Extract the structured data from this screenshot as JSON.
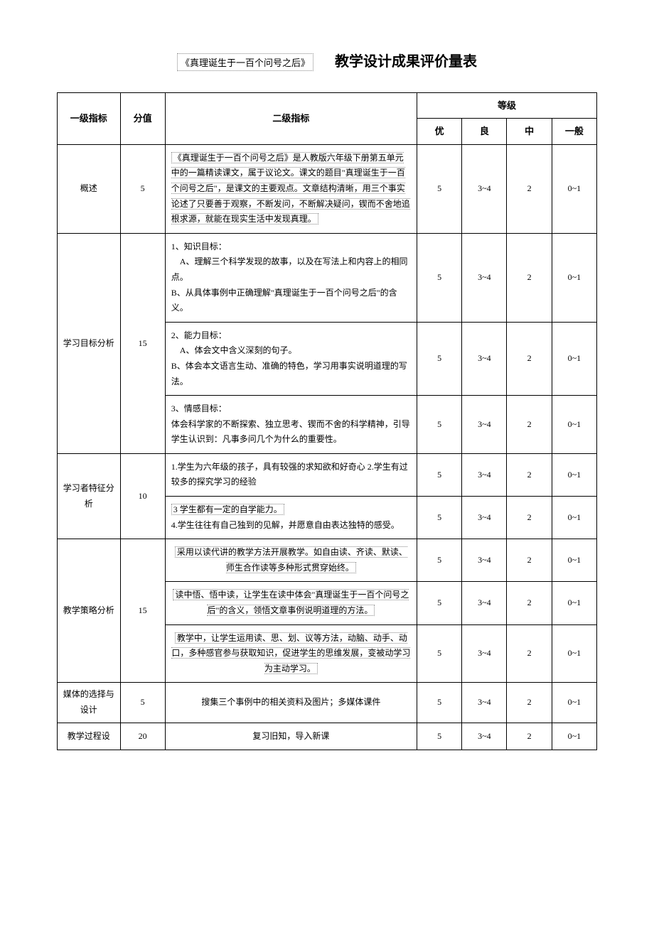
{
  "header": {
    "title_left": "《真理诞生于一百个问号之后》",
    "title_right": "教学设计成果评价量表"
  },
  "table_headers": {
    "level1": "一级指标",
    "score": "分值",
    "level2": "二级指标",
    "grade": "等级",
    "excellent": "优",
    "good": "良",
    "medium": "中",
    "normal": "一般"
  },
  "grades": {
    "excellent": "5",
    "good": "3~4",
    "medium": "2",
    "normal": "0~1"
  },
  "rows": [
    {
      "indicator": "概述",
      "score": "5",
      "items": [
        {
          "content": "《真理诞生于一百个问号之后》是人教版六年级下册第五单元中的一篇精读课文，属于议论文。课文的题目\"真理诞生于一百个问号之后\"，是课文的主要观点。文章结构清晰，用三个事实论述了只要善于观察，不断发问，不断解决疑问，锲而不舍地追根求源，就能在现实生活中发现真理。",
          "boxed": true
        }
      ]
    },
    {
      "indicator": "学习目标分析",
      "score": "15",
      "items": [
        {
          "content_lines": [
            "1、知识目标：",
            "　A、理解三个科学发现的故事，以及在写法上和内容上的相同点。",
            "B、从具体事例中正确理解\"真理诞生于一百个问号之后\"的含义。"
          ]
        },
        {
          "content_lines": [
            "2、能力目标：",
            "　A、体会文中含义深刻的句子。",
            "B、体会本文语言生动、准确的特色，学习用事实说明道理的写法。"
          ]
        },
        {
          "content_lines": [
            "3、情感目标：",
            "体会科学家的不断探索、独立思考、锲而不舍的科学精神，引导学生认识到：凡事多问几个为什么的重要性。"
          ]
        }
      ]
    },
    {
      "indicator": "学习者特征分析",
      "score": "10",
      "items": [
        {
          "content": "1.学生为六年级的孩子，具有较强的求知欲和好奇心 2.学生有过较多的探究学习的经验"
        },
        {
          "content_parts": [
            {
              "text": "3 学生都有一定的自学能力。",
              "boxed": true
            },
            {
              "text": "4.学生往往有自己独到的见解，并愿意自由表达独特的感受。",
              "boxed": false
            }
          ]
        }
      ]
    },
    {
      "indicator": "教学策略分析",
      "score": "15",
      "items": [
        {
          "content": "采用以读代讲的教学方法开展教学。如自由读、齐读、默读、师生合作读等多种形式贯穿始终。",
          "boxed": true,
          "center": true
        },
        {
          "content": "读中悟、悟中读，让学生在读中体会\"真理诞生于一百个问号之后\"的含义，领悟文章事例说明道理的方法。",
          "boxed": true,
          "center": true
        },
        {
          "content": "教学中，让学生运用读、思、划、议等方法，动脑、动手、动口，多种感官参与获取知识，促进学生的思维发展，变被动学习为主动学习。",
          "boxed": true,
          "center": true
        }
      ]
    },
    {
      "indicator": "媒体的选择与设计",
      "score": "5",
      "items": [
        {
          "content": "搜集三个事例中的相关资料及图片；多媒体课件",
          "center": true
        }
      ]
    },
    {
      "indicator": "教学过程设",
      "score": "20",
      "items": [
        {
          "content": "复习旧知，导入新课",
          "center": true
        }
      ]
    }
  ]
}
